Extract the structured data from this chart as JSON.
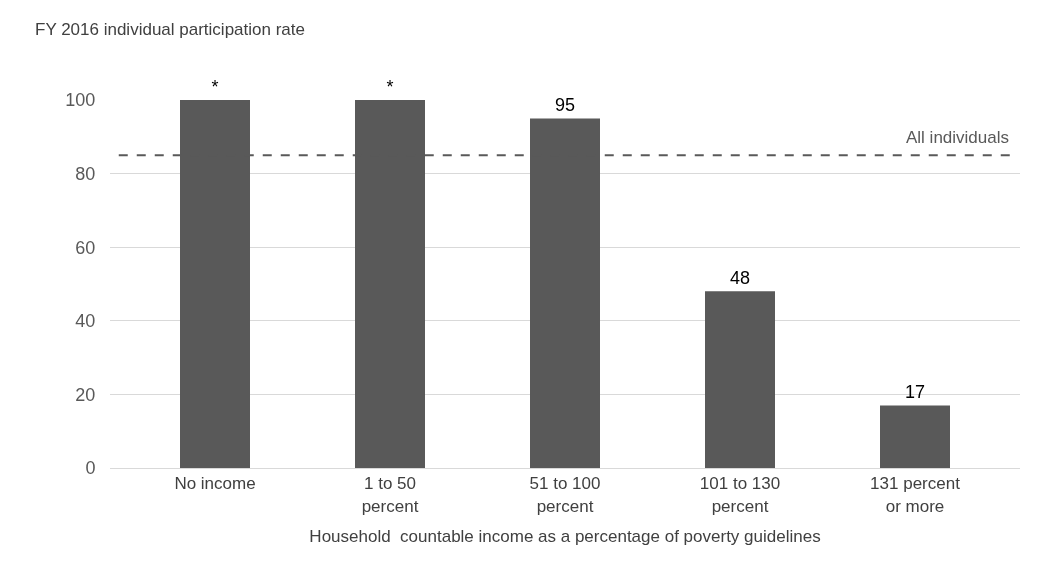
{
  "chart_data": {
    "type": "bar",
    "ylabel": "FY 2016 individual participation rate",
    "xlabel": "Household  countable income as a percentage of poverty guidelines",
    "categories": [
      "No income",
      "1 to 50\npercent",
      "51 to 100\npercent",
      "101 to 130\npercent",
      "131 percent\nor more"
    ],
    "values": [
      100,
      100,
      95,
      48,
      17
    ],
    "value_labels": [
      "*",
      "*",
      "95",
      "48",
      "17"
    ],
    "color": "#595959",
    "ylim": [
      0,
      100
    ],
    "yticks": [
      0,
      20,
      40,
      60,
      80,
      100
    ],
    "grid": "y",
    "legend": false,
    "ref_lines": [
      {
        "axis": "y",
        "value": 85,
        "label": "All individuals",
        "color": "#595959",
        "line_style": "dashed"
      }
    ]
  }
}
